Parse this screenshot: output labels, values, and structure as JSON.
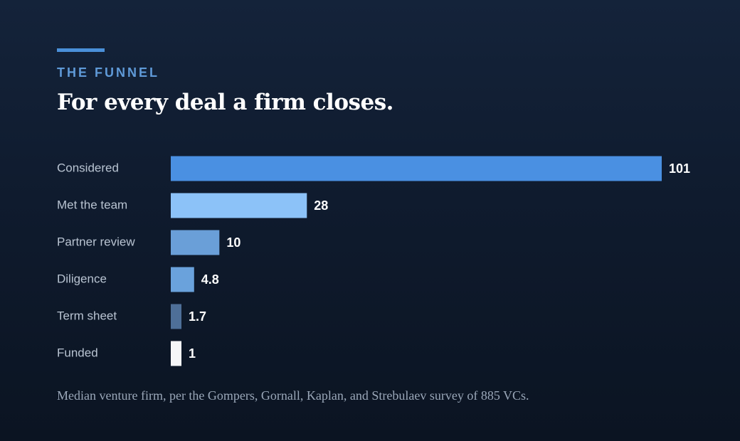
{
  "header": {
    "kicker": "THE FUNNEL",
    "title": "For every deal a firm closes."
  },
  "chart_data": {
    "type": "bar",
    "orientation": "horizontal",
    "categories": [
      "Considered",
      "Met the team",
      "Partner review",
      "Diligence",
      "Term sheet",
      "Funded"
    ],
    "values": [
      101,
      28,
      10,
      4.8,
      1.7,
      1
    ],
    "value_labels": [
      "101",
      "28",
      "10",
      "4.8",
      "1.7",
      "1"
    ],
    "colors": [
      "#4a90e2",
      "#8cc2f8",
      "#6a9fd8",
      "#6aa2dc",
      "#4e6f98",
      "#f5f6f8"
    ],
    "title": "",
    "xlabel": "",
    "ylabel": "",
    "grid": false
  },
  "footnote": "Median venture firm, per the Gompers, Gornall, Kaplan, and Strebulaev survey of 885 VCs."
}
